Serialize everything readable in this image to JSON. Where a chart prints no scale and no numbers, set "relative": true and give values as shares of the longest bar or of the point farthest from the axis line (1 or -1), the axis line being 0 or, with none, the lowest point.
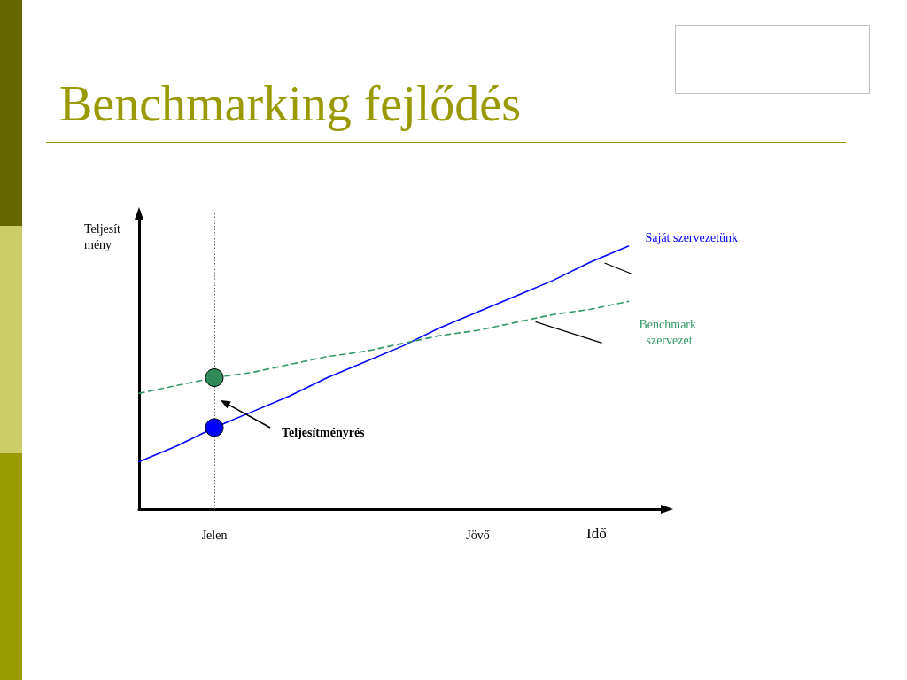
{
  "chart_data": {
    "type": "line",
    "title": "Benchmarking fejlődés",
    "xlabel": "Idő",
    "ylabel": "Teljesít\nmény",
    "relative": true,
    "legend": false,
    "grid": false,
    "tick_labels": "x",
    "marker": "none",
    "categories": [
      null,
      null,
      "Jelen",
      null,
      null,
      null,
      null,
      null,
      null,
      "Jövő",
      null,
      null,
      null,
      null,
      null
    ],
    "series": [
      {
        "name": "Saját szervezetünk",
        "color": "#0000ff",
        "line_style": "solid",
        "values": [
          0.18,
          0.24,
          0.31,
          0.37,
          0.43,
          0.5,
          0.56,
          0.62,
          0.69,
          0.75,
          0.81,
          0.87,
          0.94,
          1.0,
          null
        ]
      },
      {
        "name": "Benchmark szervezet",
        "color": "#339966",
        "line_style": "dashed",
        "values": [
          0.44,
          0.47,
          0.5,
          0.52,
          0.55,
          0.58,
          0.6,
          0.63,
          0.66,
          0.68,
          0.71,
          0.74,
          0.76,
          0.79,
          null
        ]
      },
      {
        "type": "scatter",
        "x": [
          "Jelen"
        ],
        "values": [
          0.5
        ],
        "color": "#2e8b57",
        "marker": "circle"
      },
      {
        "type": "scatter",
        "x": [
          "Jelen"
        ],
        "values": [
          0.31
        ],
        "color": "#0000ff",
        "marker": "circle"
      }
    ],
    "ref_lines": [
      {
        "axis": "x",
        "value": "Jelen",
        "color": "#666666",
        "line_style": "dotted"
      }
    ],
    "annotations": [
      "Teljesítményrés"
    ]
  }
}
